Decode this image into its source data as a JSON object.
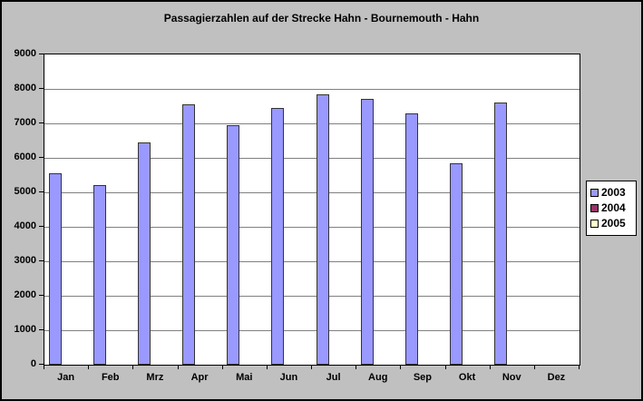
{
  "window": {
    "background_color": "#C0C0C0",
    "border_color": "#000000",
    "plot_background_color": "#FFFFFF",
    "gridline_color": "#808080"
  },
  "chart_data": {
    "type": "bar",
    "title": "Passagierzahlen auf der Strecke Hahn - Bournemouth - Hahn",
    "categories": [
      "Jan",
      "Feb",
      "Mrz",
      "Apr",
      "Mai",
      "Jun",
      "Jul",
      "Aug",
      "Sep",
      "Okt",
      "Nov",
      "Dez"
    ],
    "series": [
      {
        "name": "2003",
        "color": "#9999FF",
        "values": [
          5550,
          5200,
          6450,
          7550,
          6950,
          7450,
          7850,
          7700,
          7300,
          5850,
          7600,
          null
        ]
      },
      {
        "name": "2004",
        "color": "#993366",
        "values": [
          null,
          null,
          null,
          null,
          null,
          null,
          null,
          null,
          null,
          null,
          null,
          null
        ]
      },
      {
        "name": "2005",
        "color": "#FFFFCC",
        "values": [
          null,
          null,
          null,
          null,
          null,
          null,
          null,
          null,
          null,
          null,
          null,
          null
        ]
      }
    ],
    "xlabel": "",
    "ylabel": "",
    "ylim": [
      0,
      9000
    ],
    "yticks": [
      0,
      1000,
      2000,
      3000,
      4000,
      5000,
      6000,
      7000,
      8000,
      9000
    ],
    "grid": true,
    "legend_position": "right"
  }
}
